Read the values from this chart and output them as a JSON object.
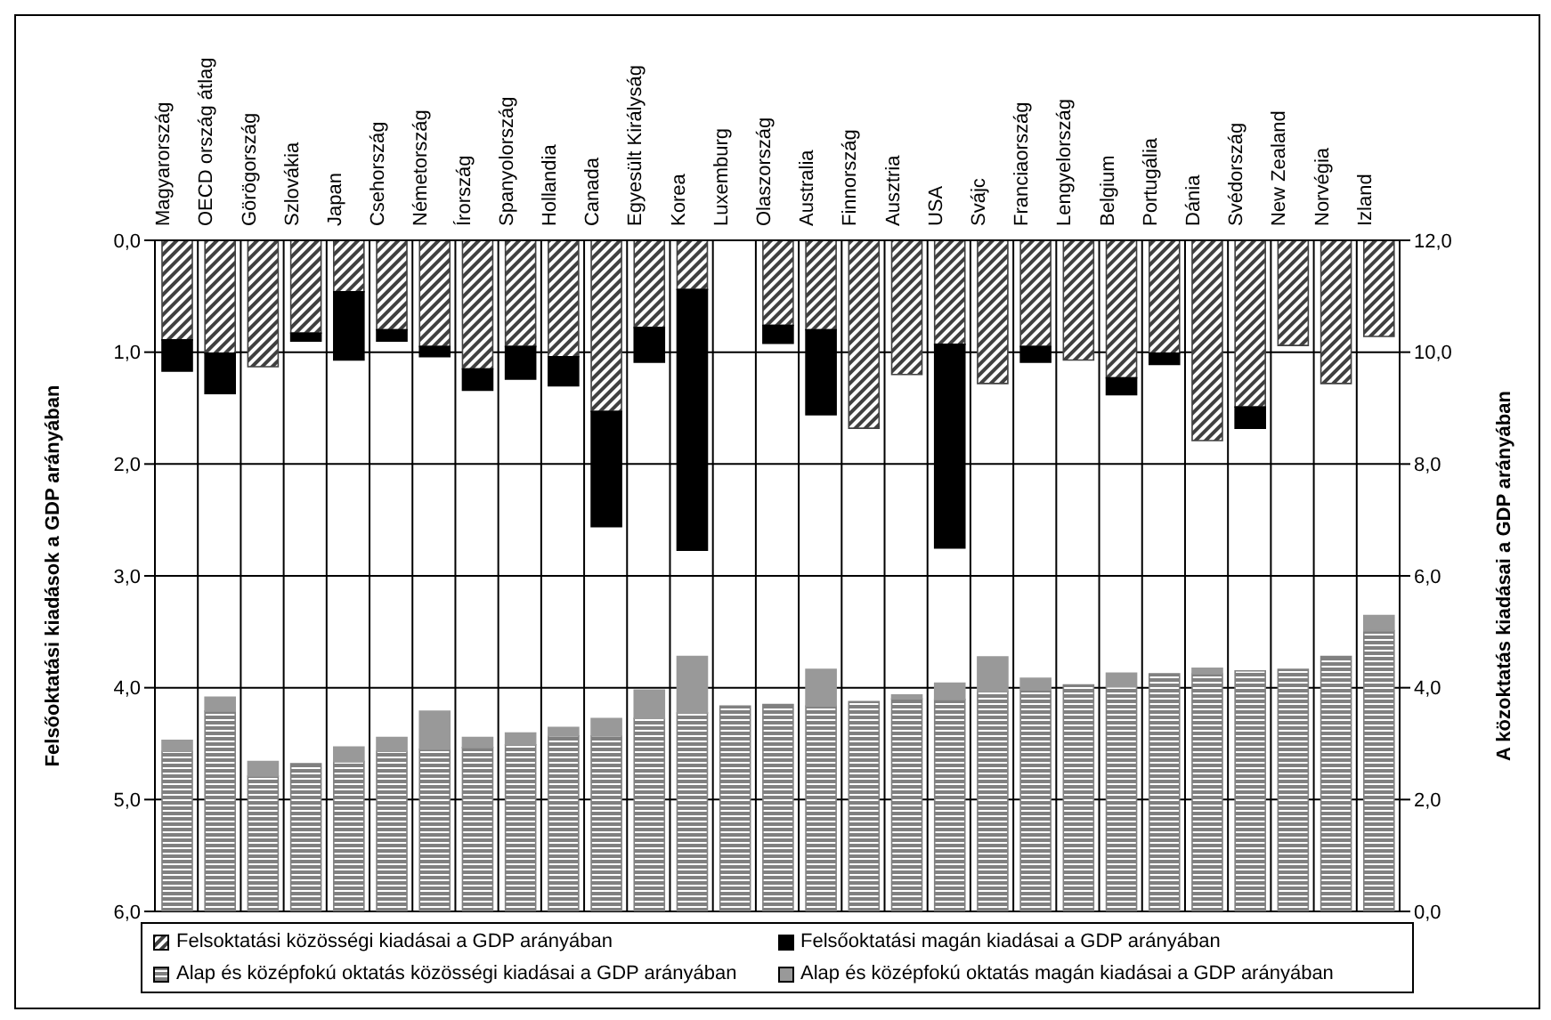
{
  "chart_data": {
    "type": "bar",
    "stacked": true,
    "categories": [
      "Magyarország",
      "OECD ország átlag",
      "Görögország",
      "Szlovákia",
      "Japan",
      "Csehország",
      "Németország",
      "Írország",
      "Spanyolország",
      "Hollandia",
      "Canada",
      "Egyesült Királyság",
      "Korea",
      "Luxemburg",
      "Olaszország",
      "Australia",
      "Finnország",
      "Ausztria",
      "USA",
      "Svájc",
      "Franciaország",
      "Lengyelország",
      "Belgium",
      "Portugália",
      "Dánia",
      "Svédország",
      "New Zealand",
      "Norvégia",
      "Izland"
    ],
    "series": [
      {
        "name": "Felsoktatási közösségi kiadásai a GDP arányában",
        "color": "#404040",
        "values": [
          0.89,
          1.01,
          1.13,
          0.83,
          0.46,
          0.8,
          0.95,
          1.15,
          0.95,
          1.04,
          1.53,
          0.78,
          0.44,
          null,
          0.76,
          0.8,
          1.68,
          1.2,
          0.93,
          1.28,
          0.95,
          1.07,
          1.23,
          1.01,
          1.79,
          1.49,
          0.94,
          1.28,
          0.86
        ]
      },
      {
        "name": "Felsőoktatási magán kiadásai a GDP arányában",
        "color": "#000000",
        "values": [
          0.28,
          0.36,
          null,
          0.07,
          0.61,
          0.1,
          0.09,
          0.19,
          0.29,
          0.26,
          1.03,
          0.31,
          2.33,
          null,
          0.16,
          0.76,
          null,
          null,
          1.82,
          null,
          0.14,
          null,
          0.15,
          0.1,
          null,
          0.19,
          null,
          null,
          null
        ]
      },
      {
        "name": "Alap és középfokú oktatás közösségi kiadásai a GDP arányában",
        "color": "#808080",
        "axis": "y2",
        "values": [
          2.86,
          3.58,
          2.42,
          2.64,
          2.68,
          2.86,
          2.9,
          2.93,
          2.98,
          3.14,
          3.14,
          3.45,
          3.55,
          3.67,
          3.7,
          3.67,
          3.75,
          3.8,
          3.79,
          3.93,
          3.96,
          4.05,
          4.02,
          4.25,
          4.25,
          4.3,
          4.33,
          4.56,
          5.02
        ]
      },
      {
        "name": "Alap és középfokú oktatás magán kiadásai a GDP arányában",
        "color": "#999999",
        "axis": "y2",
        "values": [
          0.2,
          0.25,
          0.26,
          null,
          0.26,
          0.25,
          0.68,
          0.18,
          0.21,
          0.15,
          0.31,
          0.51,
          1.01,
          null,
          null,
          0.66,
          null,
          0.07,
          0.29,
          0.62,
          0.21,
          null,
          0.24,
          null,
          0.1,
          null,
          null,
          null,
          0.27
        ]
      }
    ],
    "ylabel": "Felsőoktatási kiadások a GDP arányában",
    "y2label": "A közoktatás kiadásai a GDP arányában",
    "ylim": [
      6,
      0
    ],
    "yticks": [
      {
        "value": 0,
        "label": "0,0"
      },
      {
        "value": 1,
        "label": "1,0"
      },
      {
        "value": 2,
        "label": "2,0"
      },
      {
        "value": 3,
        "label": "3,0"
      },
      {
        "value": 4,
        "label": "4,0"
      },
      {
        "value": 5,
        "label": "5,0"
      },
      {
        "value": 6,
        "label": "6,0"
      }
    ],
    "y2lim": [
      0,
      12
    ],
    "y2ticks": [
      {
        "value": 0,
        "label": "0,0"
      },
      {
        "value": 2,
        "label": "2,0"
      },
      {
        "value": 4,
        "label": "4,0"
      },
      {
        "value": 6,
        "label": "6,0"
      },
      {
        "value": 8,
        "label": "8,0"
      },
      {
        "value": 10,
        "label": "10,0"
      },
      {
        "value": 12,
        "label": "12,0"
      }
    ],
    "grid": true,
    "legend": "bottom"
  }
}
